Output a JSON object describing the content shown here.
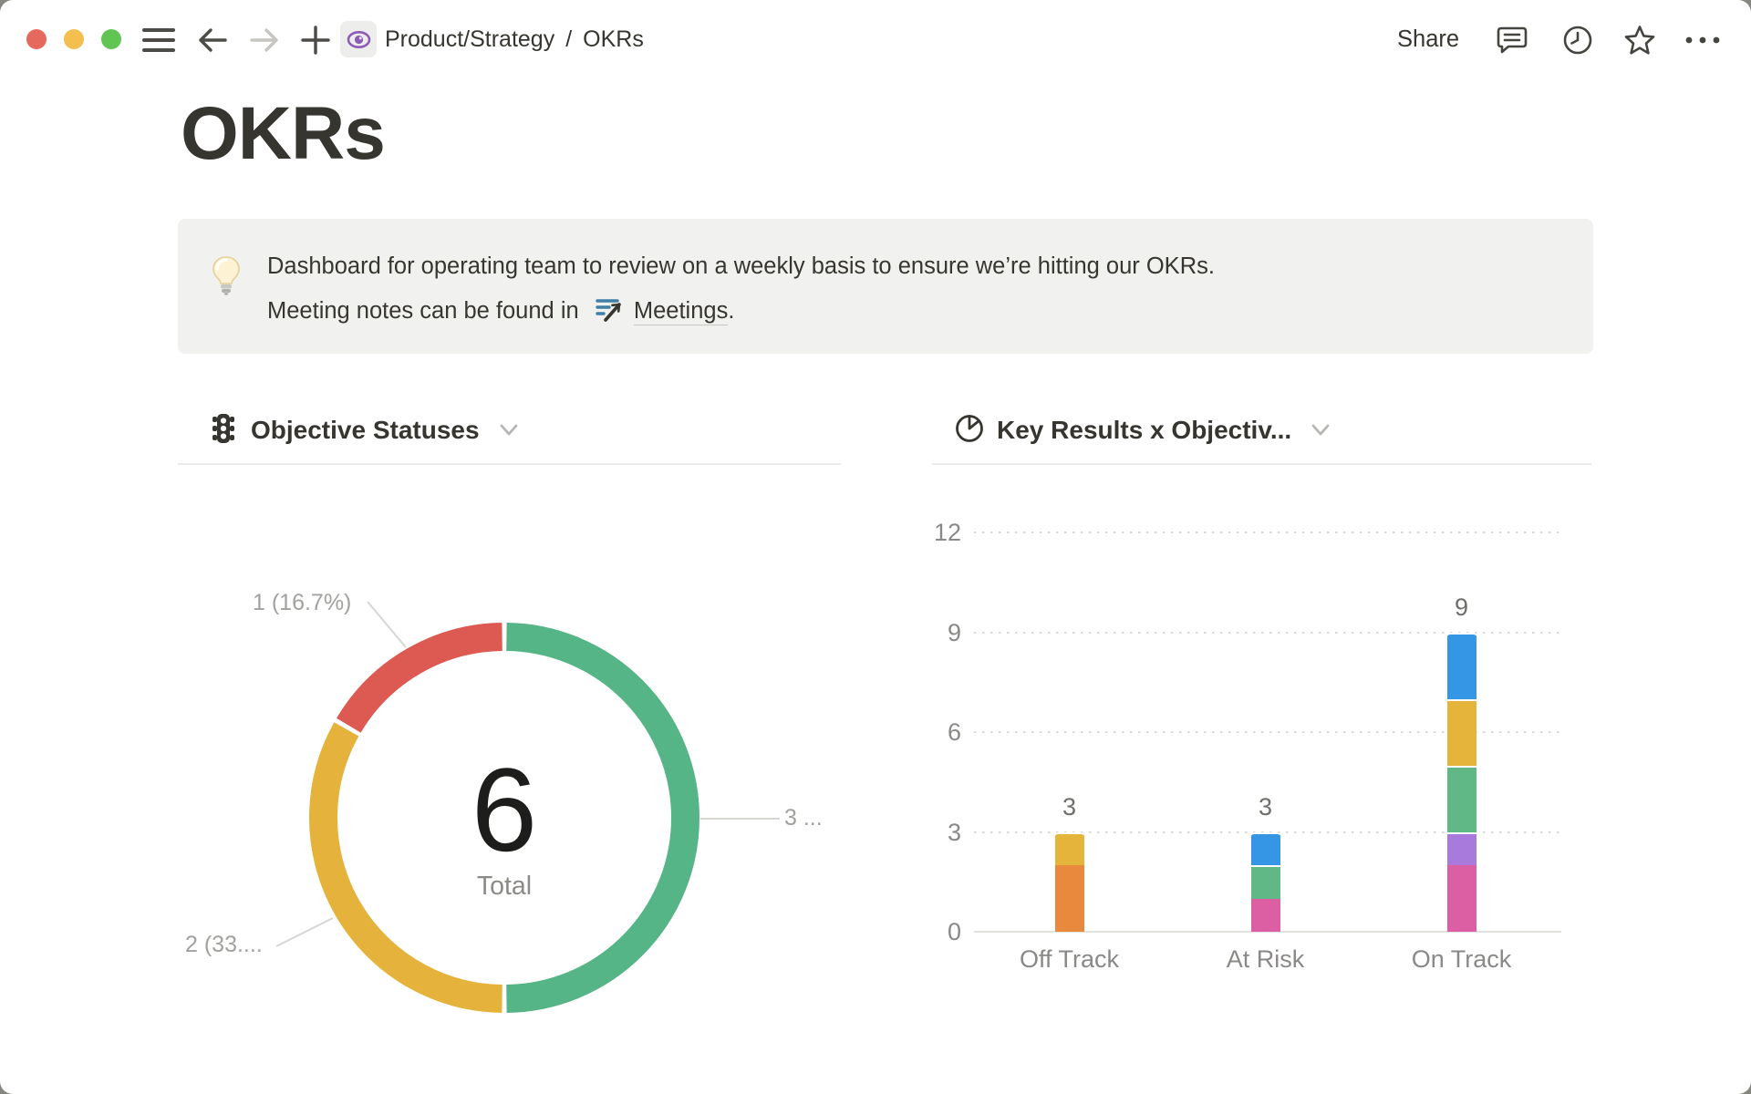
{
  "topbar": {
    "window_controls": {
      "close_color": "#e6695e",
      "minimize_color": "#f5bf4f",
      "zoom_color": "#61c554"
    },
    "nav_icons": [
      "menu-icon",
      "back-arrow-icon",
      "forward-arrow-icon",
      "plus-icon"
    ],
    "breadcrumb": {
      "parent": "Product/Strategy",
      "separator": "/",
      "current": "OKRs"
    },
    "page_icon": "eye-icon",
    "page_icon_color": "#8d5bb8",
    "share_label": "Share",
    "right_icons": [
      "comment-icon",
      "clock-icon",
      "star-icon",
      "ellipsis-icon"
    ]
  },
  "page": {
    "title": "OKRs"
  },
  "callout": {
    "icon": "lightbulb",
    "line1": "Dashboard for operating team to review on a weekly basis to ensure we’re hitting our OKRs.",
    "line2_prefix": "Meeting notes can be found in",
    "link_icon": "meeting-notes-icon",
    "link_text": "Meetings",
    "line2_suffix": "."
  },
  "charts": {
    "left_header": {
      "icon": "traffic-light-icon",
      "title": "Objective Statuses",
      "chevron": "chevron-down-icon"
    },
    "right_header": {
      "icon": "pie-chart-icon",
      "title": "Key Results x Objectiv...",
      "chevron": "chevron-down-icon"
    }
  },
  "chart_data": [
    {
      "type": "pie",
      "subtype": "donut",
      "title": "Objective Statuses",
      "total": 6,
      "center_value": "6",
      "center_label": "Total",
      "segments": [
        {
          "value": 3,
          "percent": 50.0,
          "color": "#56b587",
          "label": "3 ..."
        },
        {
          "value": 2,
          "percent": 33.3,
          "color": "#e5b33b",
          "label": "2 (33...."
        },
        {
          "value": 1,
          "percent": 16.7,
          "color": "#dc5a52",
          "label": "1 (16.7%)"
        }
      ],
      "legend_position": "outside-callout-lines"
    },
    {
      "type": "bar",
      "title": "Key Results x Objectiv...",
      "stacked": true,
      "grid": "dotted-horizontal",
      "ylim": [
        0,
        12
      ],
      "y_ticks": [
        0,
        3,
        6,
        9,
        12
      ],
      "categories": [
        "Off Track",
        "At Risk",
        "On Track"
      ],
      "totals": [
        3,
        3,
        9
      ],
      "stacks": [
        [
          {
            "value": 2,
            "color": "#e8893e"
          },
          {
            "value": 1,
            "color": "#e4b43b"
          }
        ],
        [
          {
            "value": 1,
            "color": "#dc5fa3"
          },
          {
            "value": 1,
            "color": "#5fb886"
          },
          {
            "value": 1,
            "color": "#3496e4"
          }
        ],
        [
          {
            "value": 2,
            "color": "#dc5fa3"
          },
          {
            "value": 1,
            "color": "#a87adb"
          },
          {
            "value": 2,
            "color": "#5fb886"
          },
          {
            "value": 2,
            "color": "#e4b43b"
          },
          {
            "value": 2,
            "color": "#3496e4"
          }
        ]
      ]
    }
  ]
}
